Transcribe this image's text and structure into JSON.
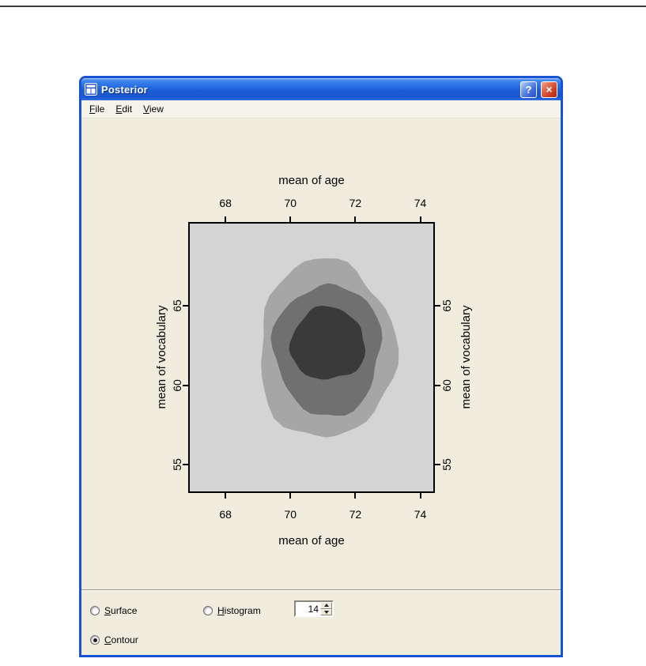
{
  "window": {
    "title": "Posterior",
    "buttons": {
      "help": "?",
      "close": "×"
    }
  },
  "menu": {
    "items": [
      {
        "key": "F",
        "rest": "ile"
      },
      {
        "key": "E",
        "rest": "dit"
      },
      {
        "key": "V",
        "rest": "iew"
      }
    ]
  },
  "chart_data": {
    "type": "contour",
    "title": "",
    "xlabel": "mean of age",
    "ylabel": "mean of vocabulary",
    "xlim": [
      66.9,
      74.4
    ],
    "ylim": [
      53.3,
      70.2
    ],
    "x_ticks": [
      68,
      70,
      72,
      74
    ],
    "y_ticks": [
      55,
      60,
      65
    ],
    "grid": false,
    "legend": false,
    "plot_background": "#d4d4d4",
    "contour_center": [
      71,
      62.5
    ],
    "levels": [
      {
        "name": "outer",
        "color": "#a6a6a6",
        "x_range": [
          69.0,
          73.2
        ],
        "y_range": [
          56.6,
          67.9
        ]
      },
      {
        "name": "middle",
        "color": "#707070",
        "x_range": [
          69.5,
          72.8
        ],
        "y_range": [
          58.1,
          66.4
        ]
      },
      {
        "name": "inner",
        "color": "#3a3a3a",
        "x_range": [
          70.0,
          72.3
        ],
        "y_range": [
          60.3,
          64.9
        ]
      }
    ]
  },
  "controls": {
    "surface": {
      "key": "S",
      "rest": "urface"
    },
    "histogram": {
      "key": "H",
      "rest": "istogram"
    },
    "contour": {
      "key": "C",
      "rest": "ontour"
    },
    "selected": "contour",
    "spinner_value": "14"
  },
  "colors": {
    "titlebar_top": "#3d85f0",
    "titlebar_mid": "#1b5cd9",
    "window_border": "#1753d3",
    "content_bg": "#f0eddf"
  }
}
